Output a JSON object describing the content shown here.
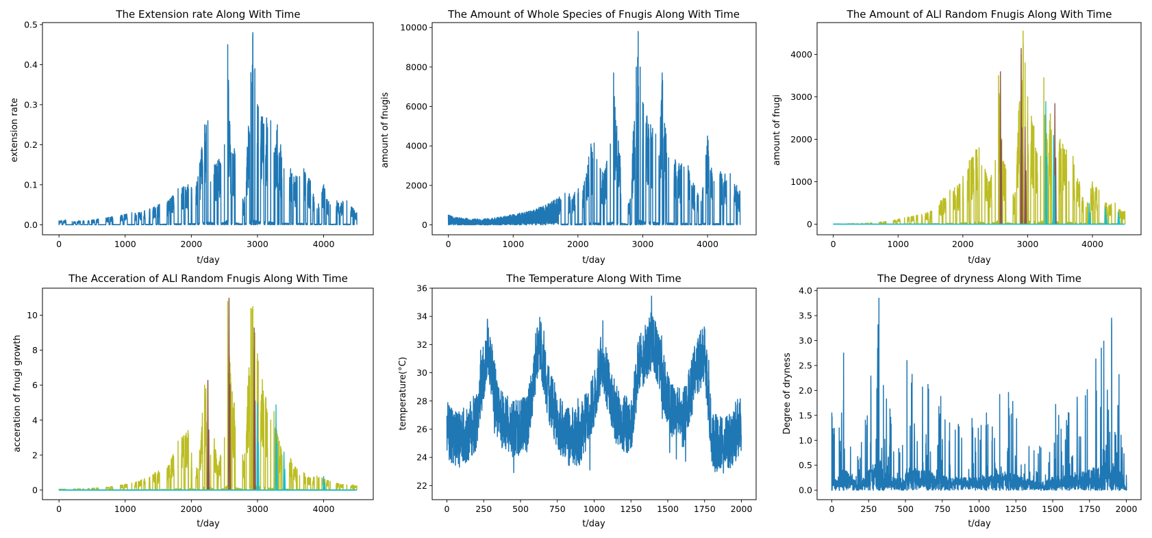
{
  "chart_data": [
    {
      "type": "line",
      "title": "The Extension rate Along With Time",
      "xlabel": "t/day",
      "ylabel": "extension rate",
      "xlim": [
        -250,
        4750
      ],
      "ylim": [
        -0.025,
        0.505
      ],
      "xticks": [
        0,
        1000,
        2000,
        3000,
        4000
      ],
      "yticks": [
        0.0,
        0.1,
        0.2,
        0.3,
        0.4,
        0.5
      ],
      "ytick_labels": [
        "0.0",
        "0.1",
        "0.2",
        "0.3",
        "0.4",
        "0.5"
      ],
      "series": [
        {
          "color": "#1f77b4",
          "style": "spiky",
          "x": [
            0,
            100,
            200,
            300,
            500,
            800,
            1100,
            1200,
            1500,
            1650,
            1800,
            1950,
            2100,
            2200,
            2250,
            2350,
            2400,
            2500,
            2550,
            2600,
            2650,
            2800,
            2900,
            2930,
            2960,
            3000,
            3200,
            3250,
            3300,
            3350,
            3400,
            3500,
            3600,
            3700,
            3800,
            3900,
            4000,
            4100,
            4200,
            4350,
            4450,
            4500
          ],
          "y": [
            0.01,
            0.012,
            0.008,
            0.01,
            0.012,
            0.02,
            0.03,
            0.03,
            0.05,
            0.06,
            0.09,
            0.1,
            0.12,
            0.25,
            0.26,
            0.15,
            0.16,
            0.2,
            0.45,
            0.18,
            0.19,
            0.05,
            0.38,
            0.48,
            0.39,
            0.3,
            0.26,
            0.18,
            0.25,
            0.2,
            0.14,
            0.14,
            0.12,
            0.14,
            0.11,
            0.04,
            0.1,
            0.05,
            0.06,
            0.06,
            0.04,
            0.03
          ]
        }
      ]
    },
    {
      "type": "line",
      "title": "The Amount of Whole Species of Fnugis Along With Time",
      "xlabel": "t/day",
      "ylabel": "amount of fnugis",
      "xlim": [
        -250,
        4750
      ],
      "ylim": [
        -500,
        10250
      ],
      "xticks": [
        0,
        1000,
        2000,
        3000,
        4000
      ],
      "yticks": [
        0,
        2000,
        4000,
        6000,
        8000,
        10000
      ],
      "ytick_labels": [
        "0",
        "2000",
        "4000",
        "6000",
        "8000",
        "10000"
      ],
      "series": [
        {
          "color": "#1f77b4",
          "style": "decay-then-spiky",
          "x": [
            0,
            200,
            400,
            600,
            800,
            1100,
            1200,
            1500,
            1800,
            1950,
            2100,
            2200,
            2250,
            2350,
            2400,
            2500,
            2550,
            2600,
            2650,
            2800,
            2900,
            2930,
            2960,
            3000,
            3200,
            3250,
            3300,
            3350,
            3400,
            3500,
            3600,
            3700,
            3800,
            3900,
            4000,
            4100,
            4200,
            4350,
            4450,
            4500
          ],
          "y": [
            500,
            350,
            300,
            320,
            400,
            600,
            650,
            1000,
            1600,
            1650,
            2200,
            4100,
            4150,
            2800,
            2600,
            4100,
            7700,
            5000,
            3500,
            1000,
            8000,
            9800,
            8000,
            6200,
            4600,
            3500,
            7700,
            4900,
            3400,
            3300,
            3100,
            3000,
            2000,
            1200,
            4500,
            2200,
            2700,
            2600,
            2000,
            1700
          ]
        }
      ]
    },
    {
      "type": "line",
      "title": "The Amount of ALl Random Fnugis Along With Time",
      "xlabel": "t/day",
      "ylabel": "amount of fnugi",
      "xlim": [
        -250,
        4750
      ],
      "ylim": [
        -250,
        4750
      ],
      "xticks": [
        0,
        1000,
        2000,
        3000,
        4000
      ],
      "yticks": [
        0,
        1000,
        2000,
        3000,
        4000
      ],
      "ytick_labels": [
        "0",
        "1000",
        "2000",
        "3000",
        "4000"
      ],
      "series": [
        {
          "color": "#bcbd22",
          "style": "spiky",
          "x": [
            0,
            500,
            800,
            1100,
            1500,
            1800,
            1950,
            2100,
            2200,
            2250,
            2400,
            2500,
            2550,
            2600,
            2650,
            2800,
            2900,
            2930,
            2960,
            3000,
            3200,
            3250,
            3300,
            3350,
            3400,
            3500,
            3600,
            3700,
            3800,
            3900,
            4000,
            4100,
            4200,
            4350,
            4450,
            4500
          ],
          "y": [
            5,
            20,
            60,
            150,
            300,
            800,
            950,
            1500,
            1750,
            1800,
            1000,
            1500,
            3500,
            2000,
            1400,
            600,
            4000,
            4550,
            3800,
            3000,
            1600,
            3450,
            2000,
            2600,
            2000,
            2000,
            1750,
            1600,
            1000,
            400,
            1000,
            800,
            500,
            500,
            300,
            300
          ]
        },
        {
          "color": "#8c564b",
          "style": "peaks",
          "x": [
            2580,
            2900,
            2960,
            3420
          ],
          "y": [
            3600,
            4150,
            2300,
            2850
          ]
        },
        {
          "color": "#17becf",
          "style": "peaks",
          "x": [
            3280,
            3400,
            3950,
            4200,
            4400
          ],
          "y": [
            2900,
            2100,
            500,
            400,
            300
          ]
        }
      ]
    },
    {
      "type": "line",
      "title": "The Acceration of ALl Random Fnugis Along With Time",
      "xlabel": "t/day",
      "ylabel": "acceration of fnugi growth",
      "xlim": [
        -250,
        4750
      ],
      "ylim": [
        -0.55,
        11.55
      ],
      "xticks": [
        0,
        1000,
        2000,
        3000,
        4000
      ],
      "yticks": [
        0,
        2,
        4,
        6,
        8,
        10
      ],
      "ytick_labels": [
        "0",
        "2",
        "4",
        "6",
        "8",
        "10"
      ],
      "series": [
        {
          "color": "#bcbd22",
          "style": "spiky",
          "x": [
            0,
            500,
            800,
            1100,
            1200,
            1450,
            1650,
            1800,
            1950,
            2100,
            2200,
            2250,
            2400,
            2500,
            2550,
            2600,
            2650,
            2800,
            2900,
            2930,
            2960,
            3000,
            3200,
            3250,
            3300,
            3350,
            3400,
            3500,
            3600,
            3700,
            3800,
            3900,
            4000,
            4100,
            4200,
            4350,
            4450,
            4500
          ],
          "y": [
            0.05,
            0.1,
            0.2,
            0.4,
            0.5,
            1.0,
            1.4,
            2.8,
            3.4,
            1.2,
            6.0,
            6.2,
            1.4,
            3.0,
            10.8,
            6.0,
            5.0,
            1.6,
            10.4,
            10.5,
            9.0,
            7.8,
            4.0,
            4.5,
            3.2,
            2.5,
            1.8,
            1.8,
            1.2,
            1.0,
            0.7,
            0.8,
            0.7,
            0.5,
            0.4,
            0.3,
            0.3,
            0.25
          ]
        },
        {
          "color": "#8c564b",
          "style": "peaks",
          "x": [
            2250,
            2570,
            2950
          ],
          "y": [
            6.3,
            11.0,
            9.3
          ]
        },
        {
          "color": "#17becf",
          "style": "peaks",
          "x": [
            3000,
            3280,
            3400,
            4000
          ],
          "y": [
            5.0,
            4.9,
            2.2,
            0.8
          ]
        }
      ]
    },
    {
      "type": "line",
      "title": "The Temperature Along With Time",
      "xlabel": "t/day",
      "ylabel": "temperature(°C)",
      "xlim": [
        -100,
        2100
      ],
      "ylim": [
        21.0,
        36.0
      ],
      "xticks": [
        0,
        250,
        500,
        750,
        1000,
        1250,
        1500,
        1750,
        2000
      ],
      "yticks": [
        22,
        24,
        26,
        28,
        30,
        32,
        34,
        36
      ],
      "ytick_labels": [
        "22",
        "24",
        "26",
        "28",
        "30",
        "32",
        "34",
        "36"
      ],
      "series": [
        {
          "color": "#1f77b4",
          "style": "noisy",
          "x": [
            0,
            100,
            200,
            275,
            350,
            450,
            550,
            625,
            700,
            800,
            900,
            1000,
            1050,
            1150,
            1250,
            1300,
            1400,
            1500,
            1600,
            1700,
            1750,
            1800,
            1900,
            2000
          ],
          "y": [
            25.8,
            25.3,
            26.5,
            32.0,
            27.0,
            26.0,
            26.5,
            32.5,
            28.0,
            25.5,
            25.5,
            28.0,
            31.0,
            27.0,
            26.0,
            30.5,
            32.5,
            28.0,
            26.5,
            30.5,
            31.5,
            25.0,
            24.8,
            26.5
          ]
        }
      ]
    },
    {
      "type": "line",
      "title": "The Degree of dryness Along With Time",
      "xlabel": "t/day",
      "ylabel": "Degree of dryness",
      "xlim": [
        -100,
        2100
      ],
      "ylim": [
        -0.19,
        4.05
      ],
      "xticks": [
        0,
        250,
        500,
        750,
        1000,
        1250,
        1500,
        1750,
        2000
      ],
      "yticks": [
        0.0,
        0.5,
        1.0,
        1.5,
        2.0,
        2.5,
        3.0,
        3.5,
        4.0
      ],
      "ytick_labels": [
        "0.0",
        "0.5",
        "1.0",
        "1.5",
        "2.0",
        "2.5",
        "3.0",
        "3.5",
        "4.0"
      ],
      "series": [
        {
          "color": "#1f77b4",
          "style": "bursts",
          "x": [
            0,
            50,
            80,
            180,
            320,
            350,
            480,
            510,
            740,
            800,
            1050,
            1140,
            1200,
            1420,
            1520,
            1610,
            1830,
            1900,
            1950,
            2000
          ],
          "y": [
            1.55,
            1.25,
            2.75,
            0.6,
            3.85,
            2.1,
            0.9,
            2.6,
            1.88,
            1.35,
            1.55,
            1.92,
            1.96,
            0.85,
            1.72,
            1.55,
            2.85,
            3.45,
            2.32,
            0.3
          ]
        }
      ]
    }
  ]
}
